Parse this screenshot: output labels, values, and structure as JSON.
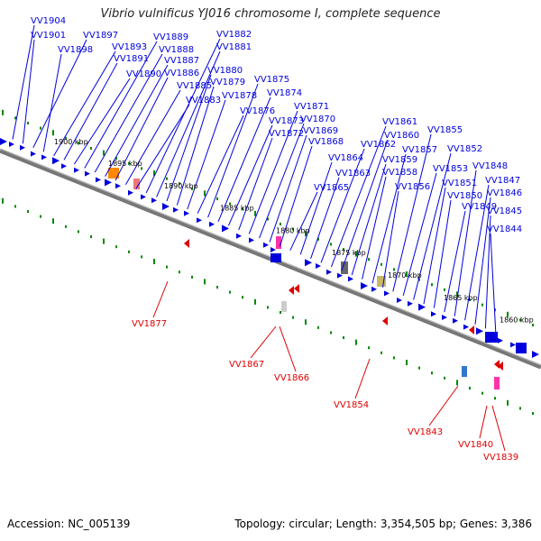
{
  "title": "Vibrio vulnificus YJ016 chromosome I, complete sequence",
  "accession": "Accession: NC_005139",
  "summary": "Topology: circular; Length: 3,354,505 bp; Genes: 3,386",
  "colors": {
    "forward": "#0000dd",
    "reverse": "#dd0000",
    "backbone": "#777777",
    "tick": "#008800"
  },
  "scale_labels": [
    "1900 kbp",
    "1895 kbp",
    "1890 kbp",
    "1885 kbp",
    "1880 kbp",
    "1875 kbp",
    "1870 kbp",
    "1865 kbp",
    "1860 kbp"
  ],
  "forward_genes": [
    "VV1904",
    "VV1901",
    "VV1897",
    "VV1898",
    "VV1893",
    "VV1891",
    "VV1890",
    "VV1889",
    "VV1888",
    "VV1887",
    "VV1886",
    "VV1885",
    "VV1883",
    "VV1882",
    "VV1881",
    "VV1880",
    "VV1879",
    "VV1878",
    "VV1876",
    "VV1875",
    "VV1874",
    "VV1873",
    "VV1872",
    "VV1871",
    "VV1870",
    "VV1869",
    "VV1868",
    "VV1865",
    "VV1864",
    "VV1863",
    "VV1862",
    "VV1861",
    "VV1860",
    "VV1859",
    "VV1858",
    "VV1857",
    "VV1856",
    "VV1855",
    "VV1853",
    "VV1852",
    "VV1851",
    "VV1850",
    "VV1849",
    "VV1848",
    "VV1847",
    "VV1846",
    "VV1845",
    "VV1844"
  ],
  "reverse_genes": [
    "VV1877",
    "VV1867",
    "VV1866",
    "VV1854",
    "VV1843",
    "VV1840",
    "VV1839"
  ]
}
